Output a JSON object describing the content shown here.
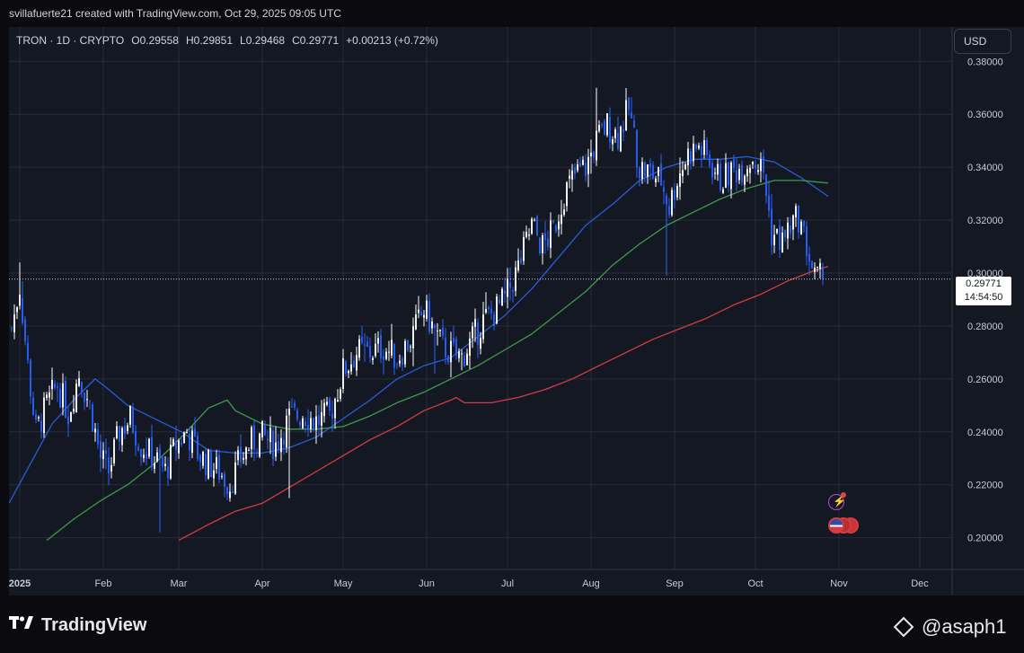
{
  "header": {
    "credit": "svillafuerte21 created with TradingView.com, Oct 29, 2025 09:05 UTC"
  },
  "legend": {
    "symbol": "TRON · 1D · CRYPTO",
    "open_label": "O",
    "open": "0.29558",
    "high_label": "H",
    "high": "0.29851",
    "low_label": "L",
    "low": "0.29468",
    "close_label": "C",
    "close": "0.29771",
    "change": "+0.00213 (+0.72%)"
  },
  "currency_button": "USD",
  "price_tag": {
    "price": "0.29771",
    "countdown": "14:54:50"
  },
  "footer": {
    "brand": "TradingView",
    "author": "@asaph1"
  },
  "colors": {
    "up": "#ffffff",
    "down": "#2962ff",
    "ma_blue": "#2a5bd7",
    "ma_green": "#3e9a4a",
    "ma_red": "#d43b43",
    "grid": "#262b38",
    "bg": "#141823"
  },
  "chart_data": {
    "type": "candlestick",
    "title": "TRON · 1D · CRYPTO",
    "y_axis": {
      "ticks": [
        0.2,
        0.22,
        0.24,
        0.26,
        0.28,
        0.3,
        0.32,
        0.34,
        0.36,
        0.38
      ],
      "ylim": [
        0.188,
        0.393
      ]
    },
    "x_axis": {
      "labels": [
        "2025",
        "Feb",
        "Mar",
        "Apr",
        "May",
        "Jun",
        "Jul",
        "Aug",
        "Sep",
        "Oct",
        "Nov",
        "Dec"
      ],
      "label_day_index": [
        0,
        31,
        59,
        90,
        120,
        151,
        181,
        212,
        243,
        273,
        304,
        334
      ],
      "day_range": [
        -4,
        346
      ]
    },
    "last_price": 0.29771,
    "price_keypoints": [
      {
        "d": -3,
        "p": 0.279
      },
      {
        "d": 0,
        "p": 0.295
      },
      {
        "d": 3,
        "p": 0.265
      },
      {
        "d": 6,
        "p": 0.24
      },
      {
        "d": 10,
        "p": 0.25
      },
      {
        "d": 14,
        "p": 0.258
      },
      {
        "d": 18,
        "p": 0.247
      },
      {
        "d": 22,
        "p": 0.262
      },
      {
        "d": 26,
        "p": 0.25
      },
      {
        "d": 30,
        "p": 0.23
      },
      {
        "d": 33,
        "p": 0.225
      },
      {
        "d": 37,
        "p": 0.24
      },
      {
        "d": 41,
        "p": 0.245
      },
      {
        "d": 45,
        "p": 0.235
      },
      {
        "d": 50,
        "p": 0.23
      },
      {
        "d": 54,
        "p": 0.225
      },
      {
        "d": 58,
        "p": 0.235
      },
      {
        "d": 62,
        "p": 0.24
      },
      {
        "d": 66,
        "p": 0.232
      },
      {
        "d": 70,
        "p": 0.228
      },
      {
        "d": 74,
        "p": 0.225
      },
      {
        "d": 78,
        "p": 0.22
      },
      {
        "d": 82,
        "p": 0.23
      },
      {
        "d": 86,
        "p": 0.236
      },
      {
        "d": 90,
        "p": 0.238
      },
      {
        "d": 95,
        "p": 0.235
      },
      {
        "d": 100,
        "p": 0.245
      },
      {
        "d": 105,
        "p": 0.247
      },
      {
        "d": 110,
        "p": 0.244
      },
      {
        "d": 115,
        "p": 0.246
      },
      {
        "d": 120,
        "p": 0.263
      },
      {
        "d": 125,
        "p": 0.27
      },
      {
        "d": 130,
        "p": 0.27
      },
      {
        "d": 135,
        "p": 0.272
      },
      {
        "d": 140,
        "p": 0.268
      },
      {
        "d": 145,
        "p": 0.275
      },
      {
        "d": 150,
        "p": 0.286
      },
      {
        "d": 153,
        "p": 0.28
      },
      {
        "d": 157,
        "p": 0.272
      },
      {
        "d": 160,
        "p": 0.27
      },
      {
        "d": 164,
        "p": 0.268
      },
      {
        "d": 168,
        "p": 0.275
      },
      {
        "d": 172,
        "p": 0.282
      },
      {
        "d": 176,
        "p": 0.285
      },
      {
        "d": 180,
        "p": 0.29
      },
      {
        "d": 185,
        "p": 0.302
      },
      {
        "d": 190,
        "p": 0.318
      },
      {
        "d": 194,
        "p": 0.31
      },
      {
        "d": 198,
        "p": 0.316
      },
      {
        "d": 202,
        "p": 0.33
      },
      {
        "d": 206,
        "p": 0.337
      },
      {
        "d": 210,
        "p": 0.34
      },
      {
        "d": 214,
        "p": 0.35
      },
      {
        "d": 218,
        "p": 0.356
      },
      {
        "d": 222,
        "p": 0.352
      },
      {
        "d": 226,
        "p": 0.362
      },
      {
        "d": 230,
        "p": 0.34
      },
      {
        "d": 234,
        "p": 0.338
      },
      {
        "d": 238,
        "p": 0.335
      },
      {
        "d": 241,
        "p": 0.325
      },
      {
        "d": 244,
        "p": 0.336
      },
      {
        "d": 248,
        "p": 0.345
      },
      {
        "d": 252,
        "p": 0.348
      },
      {
        "d": 256,
        "p": 0.342
      },
      {
        "d": 260,
        "p": 0.335
      },
      {
        "d": 264,
        "p": 0.338
      },
      {
        "d": 268,
        "p": 0.34
      },
      {
        "d": 272,
        "p": 0.344
      },
      {
        "d": 276,
        "p": 0.338
      },
      {
        "d": 279,
        "p": 0.315
      },
      {
        "d": 283,
        "p": 0.312
      },
      {
        "d": 286,
        "p": 0.318
      },
      {
        "d": 289,
        "p": 0.321
      },
      {
        "d": 292,
        "p": 0.31
      },
      {
        "d": 295,
        "p": 0.298
      },
      {
        "d": 298,
        "p": 0.2977
      }
    ],
    "spike_wicks": [
      {
        "d": 0,
        "high": 0.304
      },
      {
        "d": 52,
        "low": 0.202
      },
      {
        "d": 100,
        "low": 0.215
      },
      {
        "d": 154,
        "low": 0.262
      },
      {
        "d": 214,
        "high": 0.37
      },
      {
        "d": 240,
        "low": 0.299
      }
    ],
    "series": [
      {
        "name": "MA (blue)",
        "points": [
          {
            "d": -4,
            "p": 0.213
          },
          {
            "d": 4,
            "p": 0.228
          },
          {
            "d": 12,
            "p": 0.243
          },
          {
            "d": 20,
            "p": 0.252
          },
          {
            "d": 28,
            "p": 0.26
          },
          {
            "d": 33,
            "p": 0.256
          },
          {
            "d": 40,
            "p": 0.25
          },
          {
            "d": 50,
            "p": 0.245
          },
          {
            "d": 60,
            "p": 0.24
          },
          {
            "d": 70,
            "p": 0.233
          },
          {
            "d": 80,
            "p": 0.232
          },
          {
            "d": 90,
            "p": 0.232
          },
          {
            "d": 100,
            "p": 0.234
          },
          {
            "d": 110,
            "p": 0.238
          },
          {
            "d": 120,
            "p": 0.245
          },
          {
            "d": 130,
            "p": 0.252
          },
          {
            "d": 140,
            "p": 0.26
          },
          {
            "d": 150,
            "p": 0.265
          },
          {
            "d": 160,
            "p": 0.268
          },
          {
            "d": 170,
            "p": 0.276
          },
          {
            "d": 180,
            "p": 0.284
          },
          {
            "d": 190,
            "p": 0.294
          },
          {
            "d": 200,
            "p": 0.306
          },
          {
            "d": 210,
            "p": 0.318
          },
          {
            "d": 220,
            "p": 0.326
          },
          {
            "d": 230,
            "p": 0.335
          },
          {
            "d": 240,
            "p": 0.34
          },
          {
            "d": 250,
            "p": 0.343
          },
          {
            "d": 260,
            "p": 0.343
          },
          {
            "d": 270,
            "p": 0.344
          },
          {
            "d": 280,
            "p": 0.342
          },
          {
            "d": 290,
            "p": 0.336
          },
          {
            "d": 300,
            "p": 0.329
          }
        ]
      },
      {
        "name": "MA (green)",
        "points": [
          {
            "d": 10,
            "p": 0.199
          },
          {
            "d": 20,
            "p": 0.207
          },
          {
            "d": 30,
            "p": 0.214
          },
          {
            "d": 40,
            "p": 0.22
          },
          {
            "d": 50,
            "p": 0.228
          },
          {
            "d": 60,
            "p": 0.238
          },
          {
            "d": 70,
            "p": 0.249
          },
          {
            "d": 77,
            "p": 0.252
          },
          {
            "d": 80,
            "p": 0.248
          },
          {
            "d": 90,
            "p": 0.243
          },
          {
            "d": 100,
            "p": 0.241
          },
          {
            "d": 110,
            "p": 0.241
          },
          {
            "d": 120,
            "p": 0.242
          },
          {
            "d": 130,
            "p": 0.246
          },
          {
            "d": 140,
            "p": 0.251
          },
          {
            "d": 150,
            "p": 0.255
          },
          {
            "d": 160,
            "p": 0.26
          },
          {
            "d": 170,
            "p": 0.265
          },
          {
            "d": 180,
            "p": 0.271
          },
          {
            "d": 190,
            "p": 0.277
          },
          {
            "d": 200,
            "p": 0.285
          },
          {
            "d": 210,
            "p": 0.293
          },
          {
            "d": 220,
            "p": 0.303
          },
          {
            "d": 230,
            "p": 0.311
          },
          {
            "d": 240,
            "p": 0.318
          },
          {
            "d": 250,
            "p": 0.323
          },
          {
            "d": 260,
            "p": 0.328
          },
          {
            "d": 270,
            "p": 0.332
          },
          {
            "d": 280,
            "p": 0.335
          },
          {
            "d": 290,
            "p": 0.335
          },
          {
            "d": 300,
            "p": 0.334
          }
        ]
      },
      {
        "name": "MA (red)",
        "points": [
          {
            "d": 59,
            "p": 0.199
          },
          {
            "d": 70,
            "p": 0.205
          },
          {
            "d": 80,
            "p": 0.21
          },
          {
            "d": 90,
            "p": 0.213
          },
          {
            "d": 100,
            "p": 0.219
          },
          {
            "d": 110,
            "p": 0.225
          },
          {
            "d": 120,
            "p": 0.231
          },
          {
            "d": 130,
            "p": 0.237
          },
          {
            "d": 140,
            "p": 0.242
          },
          {
            "d": 150,
            "p": 0.248
          },
          {
            "d": 160,
            "p": 0.252
          },
          {
            "d": 162,
            "p": 0.253
          },
          {
            "d": 165,
            "p": 0.251
          },
          {
            "d": 175,
            "p": 0.251
          },
          {
            "d": 185,
            "p": 0.253
          },
          {
            "d": 195,
            "p": 0.256
          },
          {
            "d": 205,
            "p": 0.26
          },
          {
            "d": 215,
            "p": 0.265
          },
          {
            "d": 225,
            "p": 0.27
          },
          {
            "d": 235,
            "p": 0.275
          },
          {
            "d": 245,
            "p": 0.279
          },
          {
            "d": 255,
            "p": 0.283
          },
          {
            "d": 265,
            "p": 0.288
          },
          {
            "d": 275,
            "p": 0.292
          },
          {
            "d": 285,
            "p": 0.297
          },
          {
            "d": 295,
            "p": 0.301
          },
          {
            "d": 300,
            "p": 0.3025
          }
        ]
      }
    ]
  }
}
